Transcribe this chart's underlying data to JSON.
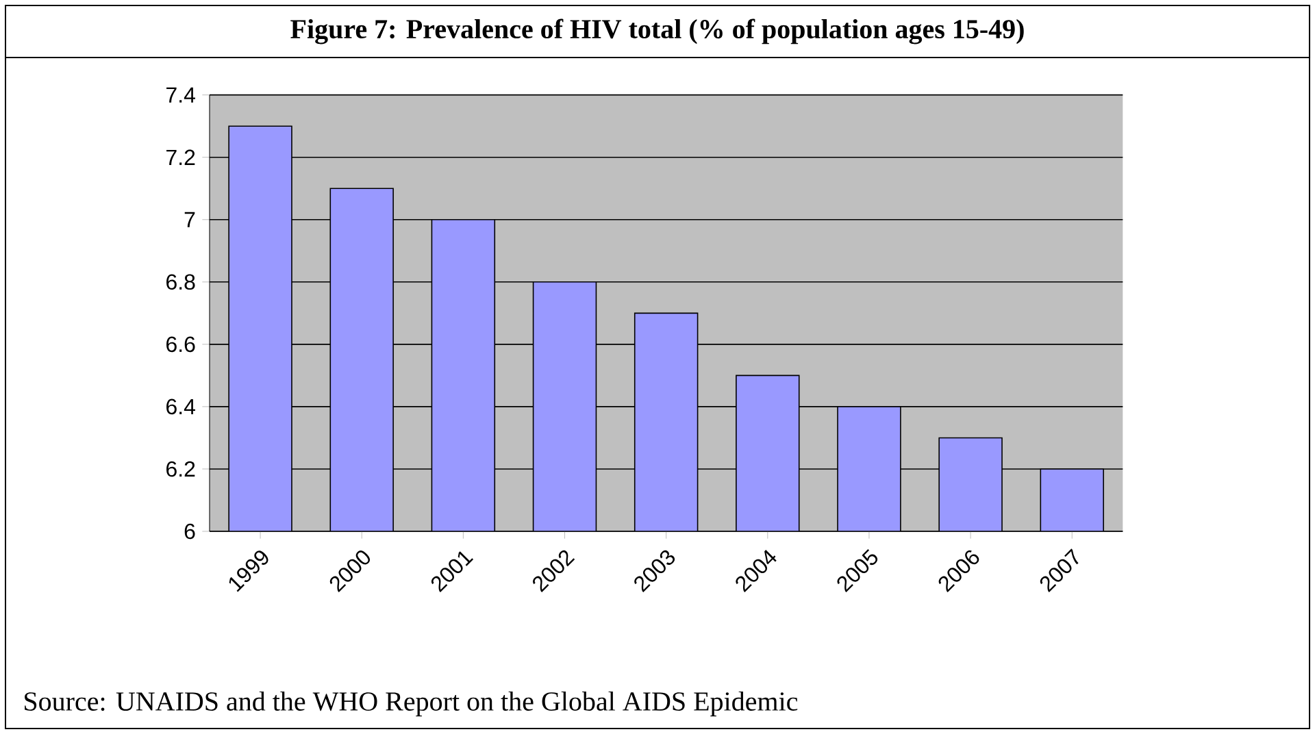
{
  "chart_data": {
    "type": "bar",
    "title": "Figure 7: Prevalence of HIV total (% of population ages 15-49)",
    "categories": [
      "1999",
      "2000",
      "2001",
      "2002",
      "2003",
      "2004",
      "2005",
      "2006",
      "2007"
    ],
    "values": [
      7.3,
      7.1,
      7.0,
      6.8,
      6.7,
      6.5,
      6.4,
      6.3,
      6.2
    ],
    "color": "#9999ff",
    "ylim": [
      6,
      7.4
    ],
    "yticks": [
      6,
      6.2,
      6.4,
      6.6,
      6.8,
      7,
      7.2,
      7.4
    ],
    "grid": "y",
    "annotations": [
      "Source: UNAIDS and the WHO Report on the Global AIDS Epidemic"
    ]
  }
}
